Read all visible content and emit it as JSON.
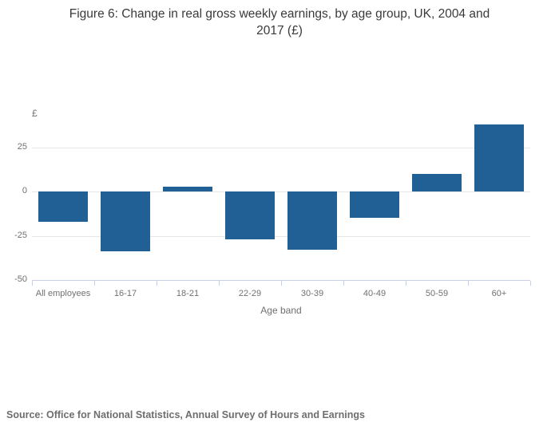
{
  "title_lines": [
    "Figure 6: Change in real gross weekly earnings, by age group, UK, 2004 and",
    "2017 (£)"
  ],
  "source_text": "Source: Office for National Statistics, Annual Survey of Hours and Earnings",
  "colors": {
    "bar": "#206095",
    "gridline": "#e6e6e6",
    "axis_line": "#c9d0e4",
    "axis_text": "#6f7071",
    "title_text": "#3a3a3a",
    "source_text": "#6e6e6e",
    "background": "#ffffff"
  },
  "chart_data": {
    "type": "bar",
    "title": "Figure 6: Change in real gross weekly earnings, by age group, UK, 2004 and 2017 (£)",
    "categories": [
      "All employees",
      "16-17",
      "18-21",
      "22-29",
      "30-39",
      "40-49",
      "50-59",
      "60+"
    ],
    "values": [
      -17,
      -34,
      2.5,
      -27,
      -33,
      -15,
      10,
      38
    ],
    "xlabel": "Age band",
    "ylabel": "£",
    "ylim": [
      -50,
      50
    ],
    "yticks": [
      25,
      0,
      -25,
      -50
    ],
    "grid": true,
    "legend": "none",
    "bar_color": "#206095"
  }
}
